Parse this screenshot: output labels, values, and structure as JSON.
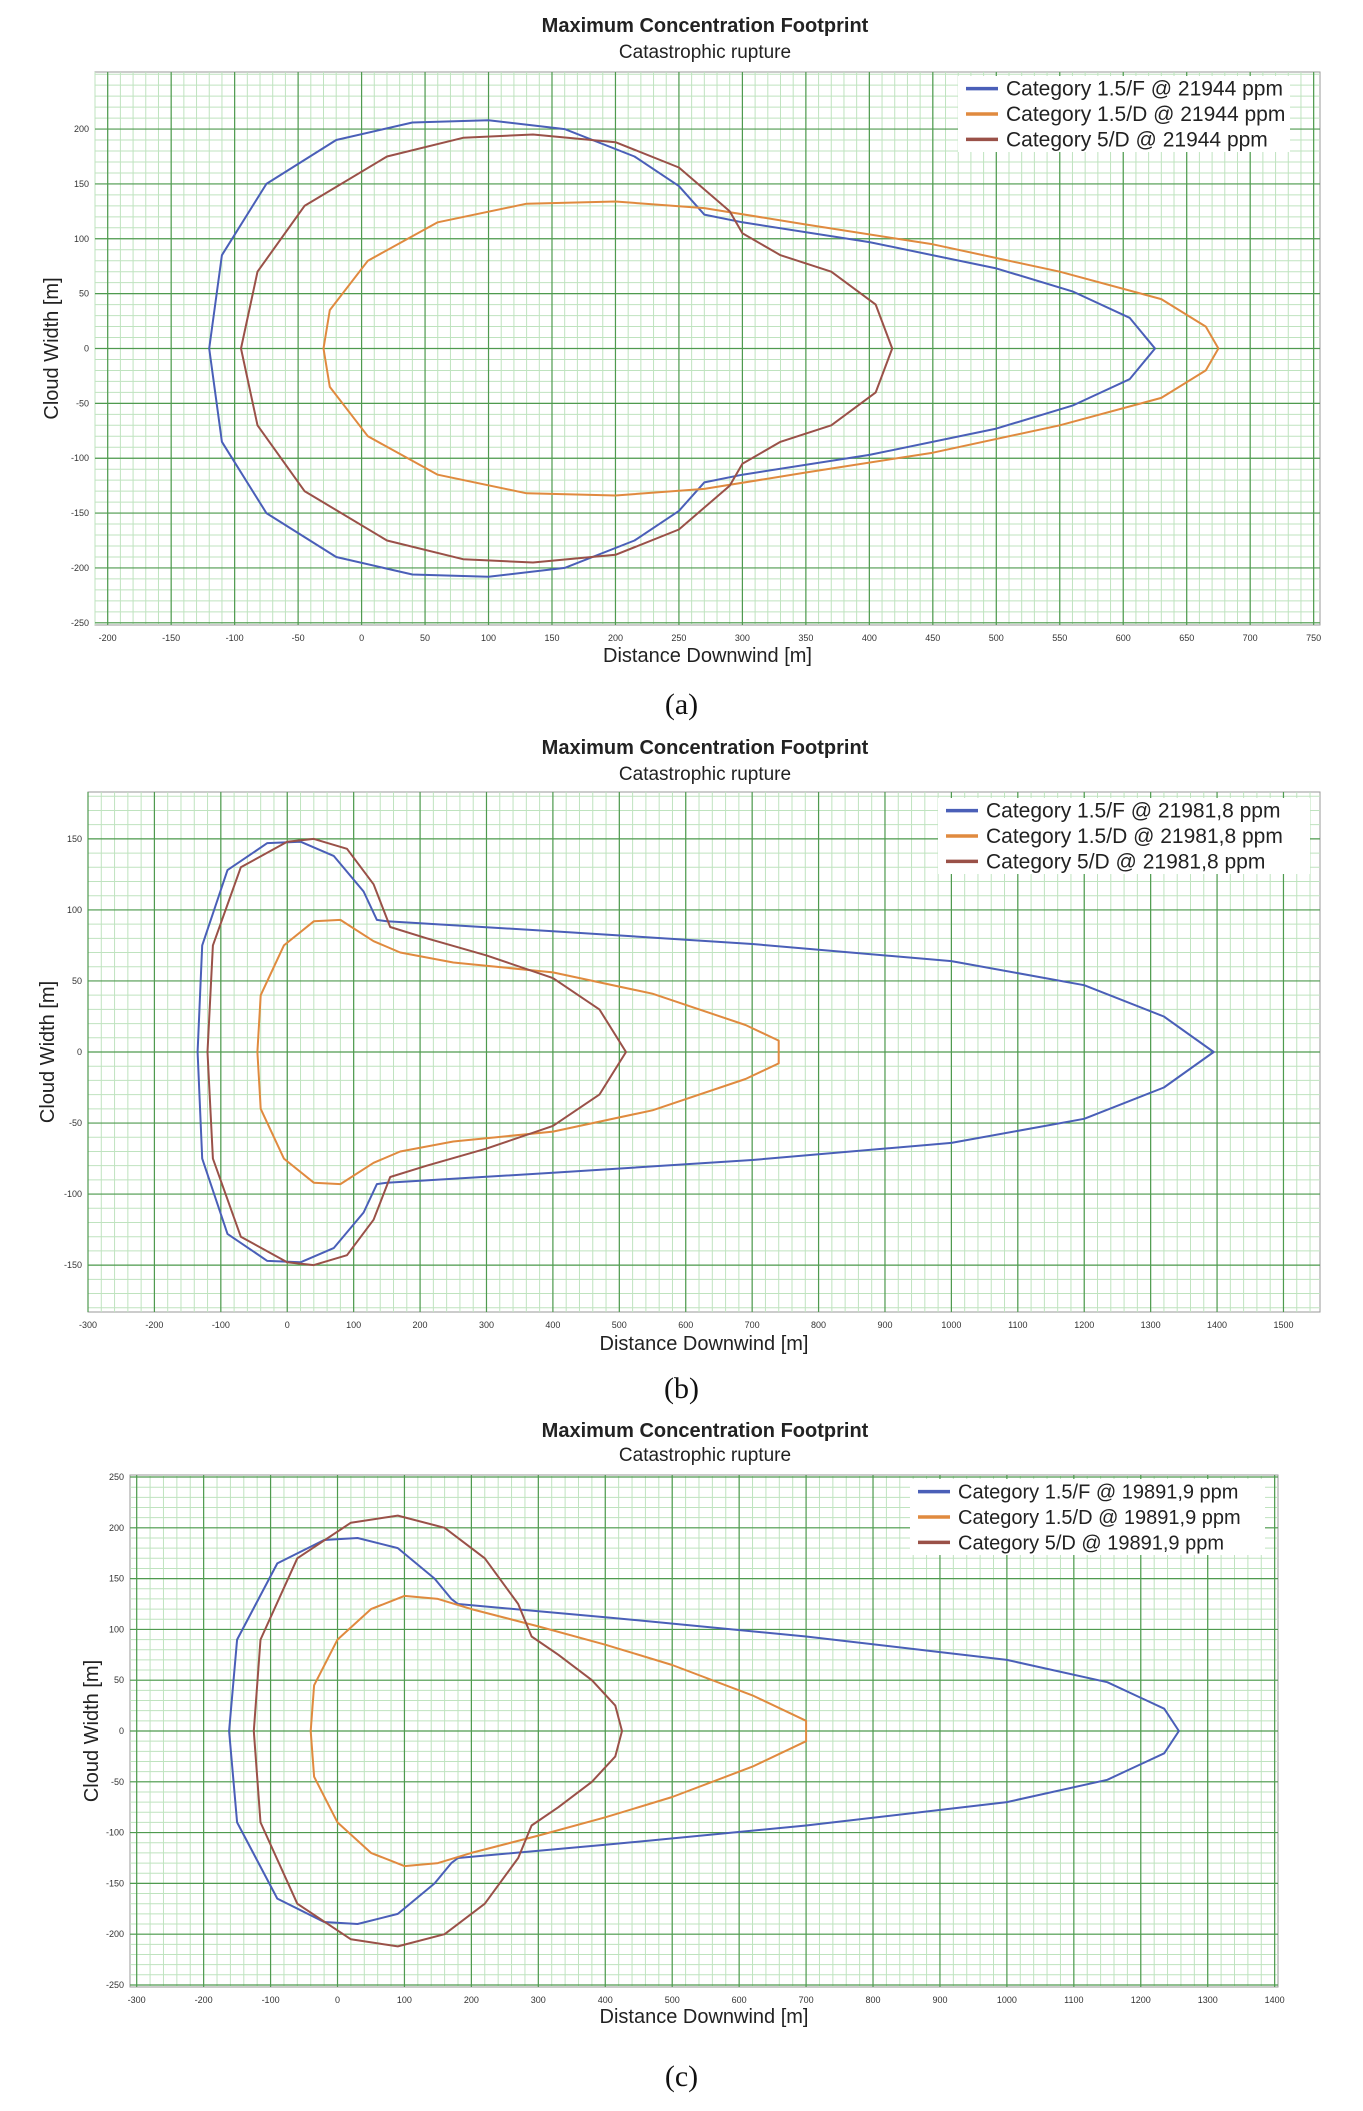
{
  "captions": {
    "a": "(a)",
    "b": "(b)",
    "c": "(c)"
  },
  "colors": {
    "grid_major": "#4f9a4f",
    "grid_minor": "#bfe3bf",
    "cat_F": "#4a5fb8",
    "cat_15D": "#e08a3f",
    "cat_5D": "#9a5148"
  },
  "chart_data": [
    {
      "type": "line",
      "title": "Maximum Concentration Footprint",
      "subtitle": "Catastrophic rupture",
      "xlabel": "Distance Downwind [m]",
      "ylabel": "Cloud Width [m]",
      "xlim": [
        -210,
        755
      ],
      "ylim": [
        -252,
        252
      ],
      "xticks": [
        -200,
        -150,
        -100,
        -50,
        0,
        50,
        100,
        150,
        200,
        250,
        300,
        350,
        400,
        450,
        500,
        550,
        600,
        650,
        700,
        750
      ],
      "yticks": [
        -250,
        -200,
        -150,
        -100,
        -50,
        0,
        50,
        100,
        150,
        200
      ],
      "legend": {
        "position": "top-right",
        "labels": [
          "Category 1.5/F @ 21944 ppm",
          "Category 1.5/D @ 21944 ppm",
          "Category 5/D @ 21944 ppm"
        ]
      },
      "series": [
        {
          "name": "Category 1.5/F @ 21944 ppm",
          "points": [
            [
              -120,
              0
            ],
            [
              -110,
              85
            ],
            [
              -75,
              150
            ],
            [
              -20,
              190
            ],
            [
              40,
              206
            ],
            [
              100,
              208
            ],
            [
              160,
              200
            ],
            [
              215,
              175
            ],
            [
              250,
              148
            ],
            [
              270,
              122
            ],
            [
              300,
              115
            ],
            [
              400,
              97
            ],
            [
              500,
              73
            ],
            [
              560,
              52
            ],
            [
              605,
              28
            ],
            [
              625,
              0
            ],
            [
              605,
              -28
            ],
            [
              560,
              -52
            ],
            [
              500,
              -73
            ],
            [
              400,
              -97
            ],
            [
              300,
              -115
            ],
            [
              270,
              -122
            ],
            [
              250,
              -148
            ],
            [
              215,
              -175
            ],
            [
              160,
              -200
            ],
            [
              100,
              -208
            ],
            [
              40,
              -206
            ],
            [
              -20,
              -190
            ],
            [
              -75,
              -150
            ],
            [
              -110,
              -85
            ],
            [
              -120,
              0
            ]
          ]
        },
        {
          "name": "Category 1.5/D @ 21944 ppm",
          "points": [
            [
              -30,
              0
            ],
            [
              -25,
              35
            ],
            [
              5,
              80
            ],
            [
              60,
              115
            ],
            [
              130,
              132
            ],
            [
              200,
              134
            ],
            [
              270,
              128
            ],
            [
              350,
              113
            ],
            [
              450,
              95
            ],
            [
              550,
              70
            ],
            [
              630,
              45
            ],
            [
              665,
              20
            ],
            [
              675,
              0
            ],
            [
              665,
              -20
            ],
            [
              630,
              -45
            ],
            [
              550,
              -70
            ],
            [
              450,
              -95
            ],
            [
              350,
              -113
            ],
            [
              270,
              -128
            ],
            [
              200,
              -134
            ],
            [
              130,
              -132
            ],
            [
              60,
              -115
            ],
            [
              5,
              -80
            ],
            [
              -25,
              -35
            ],
            [
              -30,
              0
            ]
          ]
        },
        {
          "name": "Category 5/D @ 21944 ppm",
          "points": [
            [
              -95,
              0
            ],
            [
              -82,
              70
            ],
            [
              -45,
              130
            ],
            [
              20,
              175
            ],
            [
              80,
              192
            ],
            [
              135,
              195
            ],
            [
              200,
              188
            ],
            [
              250,
              165
            ],
            [
              290,
              125
            ],
            [
              300,
              105
            ],
            [
              330,
              85
            ],
            [
              370,
              70
            ],
            [
              405,
              40
            ],
            [
              418,
              0
            ],
            [
              405,
              -40
            ],
            [
              370,
              -70
            ],
            [
              330,
              -85
            ],
            [
              300,
              -105
            ],
            [
              290,
              -125
            ],
            [
              250,
              -165
            ],
            [
              200,
              -188
            ],
            [
              135,
              -195
            ],
            [
              80,
              -192
            ],
            [
              20,
              -175
            ],
            [
              -45,
              -130
            ],
            [
              -82,
              -70
            ],
            [
              -95,
              0
            ]
          ]
        }
      ]
    },
    {
      "type": "line",
      "title": "Maximum Concentration Footprint",
      "subtitle": "Catastrophic rupture",
      "xlabel": "Distance Downwind [m]",
      "ylabel": "Cloud Width [m]",
      "xlim": [
        -300,
        1555
      ],
      "ylim": [
        -183,
        183
      ],
      "xticks": [
        -300,
        -200,
        -100,
        0,
        100,
        200,
        300,
        400,
        500,
        600,
        700,
        800,
        900,
        1000,
        1100,
        1200,
        1300,
        1400,
        1500
      ],
      "yticks": [
        -150,
        -100,
        -50,
        0,
        50,
        100,
        150
      ],
      "legend": {
        "position": "top-right",
        "labels": [
          "Category 1.5/F @ 21981,8 ppm",
          "Category 1.5/D @ 21981,8 ppm",
          "Category 5/D @ 21981,8 ppm"
        ]
      },
      "series": [
        {
          "name": "Category 1.5/F @ 21981,8 ppm",
          "points": [
            [
              -135,
              0
            ],
            [
              -128,
              75
            ],
            [
              -90,
              128
            ],
            [
              -30,
              147
            ],
            [
              20,
              148
            ],
            [
              70,
              138
            ],
            [
              115,
              113
            ],
            [
              135,
              93
            ],
            [
              150,
              92
            ],
            [
              400,
              85
            ],
            [
              700,
              76
            ],
            [
              1000,
              64
            ],
            [
              1200,
              47
            ],
            [
              1320,
              25
            ],
            [
              1395,
              0
            ],
            [
              1320,
              -25
            ],
            [
              1200,
              -47
            ],
            [
              1000,
              -64
            ],
            [
              700,
              -76
            ],
            [
              400,
              -85
            ],
            [
              150,
              -92
            ],
            [
              135,
              -93
            ],
            [
              115,
              -113
            ],
            [
              70,
              -138
            ],
            [
              20,
              -148
            ],
            [
              -30,
              -147
            ],
            [
              -90,
              -128
            ],
            [
              -128,
              -75
            ],
            [
              -135,
              0
            ]
          ]
        },
        {
          "name": "Category 1.5/D @ 21981,8 ppm",
          "points": [
            [
              -45,
              0
            ],
            [
              -40,
              40
            ],
            [
              -5,
              75
            ],
            [
              40,
              92
            ],
            [
              80,
              93
            ],
            [
              130,
              78
            ],
            [
              170,
              70
            ],
            [
              250,
              63
            ],
            [
              400,
              56
            ],
            [
              550,
              41
            ],
            [
              690,
              19
            ],
            [
              740,
              8
            ],
            [
              740,
              -8
            ],
            [
              690,
              -19
            ],
            [
              550,
              -41
            ],
            [
              400,
              -56
            ],
            [
              250,
              -63
            ],
            [
              170,
              -70
            ],
            [
              130,
              -78
            ],
            [
              80,
              -93
            ],
            [
              40,
              -92
            ],
            [
              -5,
              -75
            ],
            [
              -40,
              -40
            ],
            [
              -45,
              0
            ]
          ]
        },
        {
          "name": "Category 5/D @ 21981,8 ppm",
          "points": [
            [
              -120,
              0
            ],
            [
              -112,
              75
            ],
            [
              -70,
              130
            ],
            [
              0,
              148
            ],
            [
              40,
              150
            ],
            [
              90,
              143
            ],
            [
              130,
              118
            ],
            [
              155,
              88
            ],
            [
              210,
              80
            ],
            [
              300,
              68
            ],
            [
              400,
              52
            ],
            [
              470,
              30
            ],
            [
              510,
              0
            ],
            [
              470,
              -30
            ],
            [
              400,
              -52
            ],
            [
              300,
              -68
            ],
            [
              210,
              -80
            ],
            [
              155,
              -88
            ],
            [
              130,
              -118
            ],
            [
              90,
              -143
            ],
            [
              40,
              -150
            ],
            [
              0,
              -148
            ],
            [
              -70,
              -130
            ],
            [
              -112,
              -75
            ],
            [
              -120,
              0
            ]
          ]
        }
      ]
    },
    {
      "type": "line",
      "title": "Maximum Concentration Footprint",
      "subtitle": "Catastrophic rupture",
      "xlabel": "Distance Downwind [m]",
      "ylabel": "Cloud Width [m]",
      "xlim": [
        -310,
        1405
      ],
      "ylim": [
        -252,
        252
      ],
      "xticks": [
        -300,
        -200,
        -100,
        0,
        100,
        200,
        300,
        400,
        500,
        600,
        700,
        800,
        900,
        1000,
        1100,
        1200,
        1300,
        1400
      ],
      "yticks": [
        -250,
        -200,
        -150,
        -100,
        -50,
        0,
        50,
        100,
        150,
        200,
        250
      ],
      "legend": {
        "position": "top-right",
        "labels": [
          "Category 1.5/F @ 19891,9 ppm",
          "Category 1.5/D @ 19891,9 ppm",
          "Category 5/D @ 19891,9 ppm"
        ]
      },
      "series": [
        {
          "name": "Category 1.5/F @ 19891,9 ppm",
          "points": [
            [
              -162,
              0
            ],
            [
              -150,
              90
            ],
            [
              -90,
              165
            ],
            [
              -20,
              188
            ],
            [
              30,
              190
            ],
            [
              90,
              180
            ],
            [
              145,
              150
            ],
            [
              170,
              130
            ],
            [
              180,
              125
            ],
            [
              400,
              112
            ],
            [
              700,
              93
            ],
            [
              1000,
              70
            ],
            [
              1150,
              48
            ],
            [
              1235,
              22
            ],
            [
              1257,
              0
            ],
            [
              1235,
              -22
            ],
            [
              1150,
              -48
            ],
            [
              1000,
              -70
            ],
            [
              700,
              -93
            ],
            [
              400,
              -112
            ],
            [
              180,
              -125
            ],
            [
              170,
              -130
            ],
            [
              145,
              -150
            ],
            [
              90,
              -180
            ],
            [
              30,
              -190
            ],
            [
              -20,
              -188
            ],
            [
              -90,
              -165
            ],
            [
              -150,
              -90
            ],
            [
              -162,
              0
            ]
          ]
        },
        {
          "name": "Category 1.5/D @ 19891,9 ppm",
          "points": [
            [
              -40,
              0
            ],
            [
              -35,
              45
            ],
            [
              0,
              90
            ],
            [
              50,
              120
            ],
            [
              100,
              133
            ],
            [
              150,
              130
            ],
            [
              200,
              120
            ],
            [
              300,
              103
            ],
            [
              400,
              85
            ],
            [
              500,
              65
            ],
            [
              620,
              35
            ],
            [
              700,
              10
            ],
            [
              700,
              -10
            ],
            [
              620,
              -35
            ],
            [
              500,
              -65
            ],
            [
              400,
              -85
            ],
            [
              300,
              -103
            ],
            [
              200,
              -120
            ],
            [
              150,
              -130
            ],
            [
              100,
              -133
            ],
            [
              50,
              -120
            ],
            [
              0,
              -90
            ],
            [
              -35,
              -45
            ],
            [
              -40,
              0
            ]
          ]
        },
        {
          "name": "Category 5/D @ 19891,9 ppm",
          "points": [
            [
              -125,
              0
            ],
            [
              -115,
              90
            ],
            [
              -60,
              170
            ],
            [
              20,
              205
            ],
            [
              90,
              212
            ],
            [
              160,
              200
            ],
            [
              220,
              170
            ],
            [
              270,
              125
            ],
            [
              290,
              93
            ],
            [
              330,
              75
            ],
            [
              380,
              50
            ],
            [
              415,
              25
            ],
            [
              425,
              0
            ],
            [
              415,
              -25
            ],
            [
              380,
              -50
            ],
            [
              330,
              -75
            ],
            [
              290,
              -93
            ],
            [
              270,
              -125
            ],
            [
              220,
              -170
            ],
            [
              160,
              -200
            ],
            [
              90,
              -212
            ],
            [
              20,
              -205
            ],
            [
              -60,
              -170
            ],
            [
              -115,
              -90
            ],
            [
              -125,
              0
            ]
          ]
        }
      ]
    }
  ]
}
